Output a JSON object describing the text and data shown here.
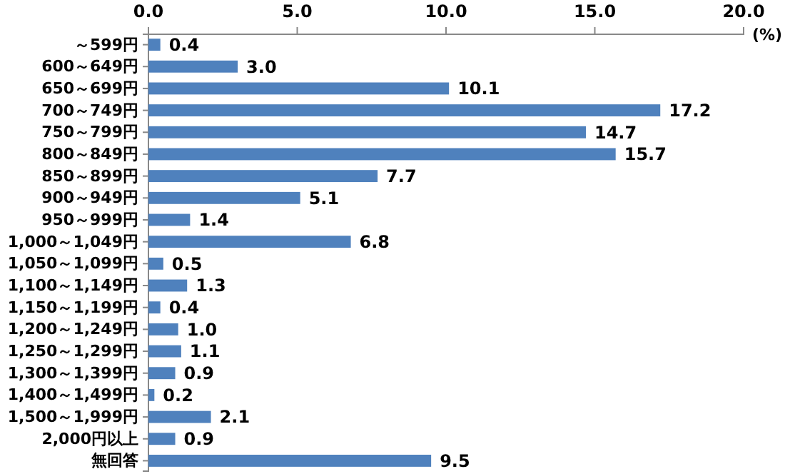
{
  "chart_data": {
    "type": "bar",
    "orientation": "horizontal",
    "xlabel": "(%)",
    "categories": [
      "～599円",
      "600～649円",
      "650～699円",
      "700～749円",
      "750～799円",
      "800～849円",
      "850～899円",
      "900～949円",
      "950～999円",
      "1,000～1,049円",
      "1,050～1,099円",
      "1,100～1,149円",
      "1,150～1,199円",
      "1,200～1,249円",
      "1,250～1,299円",
      "1,300～1,399円",
      "1,400～1,499円",
      "1,500～1,999円",
      "2,000円以上",
      "無回答"
    ],
    "values": [
      0.4,
      3.0,
      10.1,
      17.2,
      14.7,
      15.7,
      7.7,
      5.1,
      1.4,
      6.8,
      0.5,
      1.3,
      0.4,
      1.0,
      1.1,
      0.9,
      0.2,
      2.1,
      0.9,
      9.5
    ],
    "color": "#4f81bd",
    "xlim": [
      0,
      20
    ],
    "xticks": [
      {
        "value": 0,
        "label": "0.0"
      },
      {
        "value": 5,
        "label": "5.0"
      },
      {
        "value": 10,
        "label": "10.0"
      },
      {
        "value": 15,
        "label": "15.0"
      },
      {
        "value": 20,
        "label": "20.0"
      }
    ],
    "value_labels": [
      "0.4",
      "3.0",
      "10.1",
      "17.2",
      "14.7",
      "15.7",
      "7.7",
      "5.1",
      "1.4",
      "6.8",
      "0.5",
      "1.3",
      "0.4",
      "1.0",
      "1.1",
      "0.9",
      "0.2",
      "2.1",
      "0.9",
      "9.5"
    ]
  }
}
